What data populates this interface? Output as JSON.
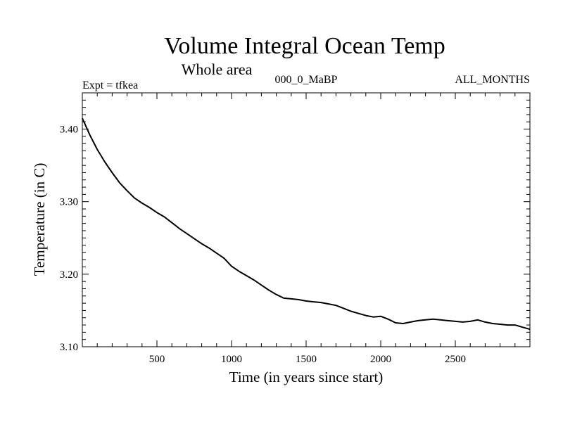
{
  "chart_data": {
    "type": "line",
    "title": "Volume Integral Ocean Temp",
    "subtitle": "Whole area",
    "annotations": {
      "experiment": "Expt = tfkea",
      "period": "000_0_MaBP",
      "months": "ALL_MONTHS"
    },
    "xlabel": "Time (in years since start)",
    "ylabel": "Temperature (in C)",
    "xlim": [
      0,
      3000
    ],
    "ylim": [
      3.1,
      3.45
    ],
    "xticks": [
      500,
      1000,
      1500,
      2000,
      2500
    ],
    "xtick_labels": [
      "500",
      "1000",
      "1500",
      "2000",
      "2500"
    ],
    "yticks": [
      3.1,
      3.2,
      3.3,
      3.4
    ],
    "ytick_labels": [
      "3.10",
      "3.20",
      "3.30",
      "3.40"
    ],
    "grid": false,
    "series": [
      {
        "color": "#000000",
        "x": [
          0,
          50,
          100,
          150,
          200,
          250,
          300,
          350,
          400,
          450,
          500,
          550,
          600,
          650,
          700,
          750,
          800,
          850,
          900,
          950,
          1000,
          1050,
          1100,
          1150,
          1200,
          1250,
          1300,
          1350,
          1400,
          1450,
          1500,
          1550,
          1600,
          1650,
          1700,
          1750,
          1800,
          1850,
          1900,
          1950,
          2000,
          2050,
          2100,
          2150,
          2200,
          2250,
          2300,
          2350,
          2400,
          2450,
          2500,
          2550,
          2600,
          2650,
          2700,
          2750,
          2800,
          2850,
          2900,
          2950,
          3000
        ],
        "y": [
          3.415,
          3.392,
          3.372,
          3.355,
          3.34,
          3.326,
          3.315,
          3.305,
          3.298,
          3.292,
          3.285,
          3.279,
          3.271,
          3.263,
          3.256,
          3.249,
          3.242,
          3.236,
          3.229,
          3.222,
          3.211,
          3.204,
          3.198,
          3.192,
          3.185,
          3.178,
          3.172,
          3.167,
          3.166,
          3.165,
          3.163,
          3.162,
          3.161,
          3.159,
          3.157,
          3.153,
          3.149,
          3.146,
          3.143,
          3.141,
          3.142,
          3.138,
          3.133,
          3.132,
          3.134,
          3.136,
          3.137,
          3.138,
          3.137,
          3.136,
          3.135,
          3.134,
          3.135,
          3.137,
          3.134,
          3.132,
          3.131,
          3.13,
          3.13,
          3.127,
          3.124
        ]
      }
    ]
  }
}
